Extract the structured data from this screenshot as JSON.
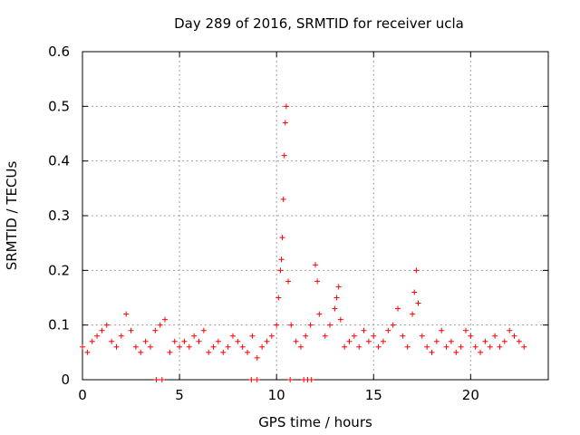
{
  "chart_data": {
    "type": "scatter",
    "title": "Day 289 of 2016, SRMTID for receiver ucla",
    "xlabel": "GPS time / hours",
    "ylabel": "SRMTID / TECUs",
    "xlim": [
      0,
      24
    ],
    "ylim": [
      0,
      0.6
    ],
    "xticks": [
      "0",
      "5",
      "10",
      "15",
      "20"
    ],
    "xtick_values": [
      0,
      5,
      10,
      15,
      20
    ],
    "yticks": [
      "0",
      "0.1",
      "0.2",
      "0.3",
      "0.4",
      "0.5",
      "0.6"
    ],
    "ytick_values": [
      0,
      0.1,
      0.2,
      0.3,
      0.4,
      0.5,
      0.6
    ],
    "grid": true,
    "marker": "+",
    "color": "#ff0000",
    "series": [
      {
        "name": "SRMTID",
        "x": [
          0.0,
          0.25,
          0.5,
          0.75,
          1.0,
          1.25,
          1.5,
          1.75,
          2.0,
          2.25,
          2.5,
          2.75,
          3.0,
          3.25,
          3.5,
          3.75,
          4.0,
          4.25,
          4.5,
          4.75,
          5.0,
          5.25,
          5.5,
          5.75,
          6.0,
          6.25,
          6.5,
          6.75,
          7.0,
          7.25,
          7.5,
          7.75,
          8.0,
          8.25,
          8.5,
          8.75,
          9.0,
          9.25,
          9.5,
          9.75,
          10.0,
          10.1,
          10.2,
          10.25,
          10.3,
          10.35,
          10.4,
          10.45,
          10.5,
          10.6,
          10.75,
          11.0,
          11.25,
          11.5,
          11.75,
          12.0,
          12.1,
          12.2,
          12.5,
          12.75,
          13.0,
          13.1,
          13.2,
          13.3,
          13.5,
          13.75,
          14.0,
          14.25,
          14.5,
          14.75,
          15.0,
          15.25,
          15.5,
          15.75,
          16.0,
          16.25,
          16.5,
          16.75,
          17.0,
          17.1,
          17.2,
          17.3,
          17.5,
          17.75,
          18.0,
          18.25,
          18.5,
          18.75,
          19.0,
          19.25,
          19.5,
          19.75,
          20.0,
          20.25,
          20.5,
          20.75,
          21.0,
          21.25,
          21.5,
          21.75,
          22.0,
          22.25,
          22.5,
          22.75,
          3.8,
          4.1,
          8.7,
          9.0,
          10.7,
          11.4,
          11.6,
          11.8
        ],
        "y": [
          0.06,
          0.05,
          0.07,
          0.08,
          0.09,
          0.1,
          0.07,
          0.06,
          0.08,
          0.12,
          0.09,
          0.06,
          0.05,
          0.07,
          0.06,
          0.09,
          0.1,
          0.11,
          0.05,
          0.07,
          0.06,
          0.07,
          0.06,
          0.08,
          0.07,
          0.09,
          0.05,
          0.06,
          0.07,
          0.05,
          0.06,
          0.08,
          0.07,
          0.06,
          0.05,
          0.08,
          0.04,
          0.06,
          0.07,
          0.08,
          0.1,
          0.15,
          0.2,
          0.22,
          0.26,
          0.33,
          0.41,
          0.47,
          0.5,
          0.18,
          0.1,
          0.07,
          0.06,
          0.08,
          0.1,
          0.21,
          0.18,
          0.12,
          0.08,
          0.1,
          0.13,
          0.15,
          0.17,
          0.11,
          0.06,
          0.07,
          0.08,
          0.06,
          0.09,
          0.07,
          0.08,
          0.06,
          0.07,
          0.09,
          0.1,
          0.13,
          0.08,
          0.06,
          0.12,
          0.16,
          0.2,
          0.14,
          0.08,
          0.06,
          0.05,
          0.07,
          0.09,
          0.06,
          0.07,
          0.05,
          0.06,
          0.09,
          0.08,
          0.06,
          0.05,
          0.07,
          0.06,
          0.08,
          0.06,
          0.07,
          0.09,
          0.08,
          0.07,
          0.06,
          0.0,
          0.0,
          0.0,
          0.0,
          0.0,
          0.0,
          0.0,
          0.0
        ]
      }
    ]
  }
}
